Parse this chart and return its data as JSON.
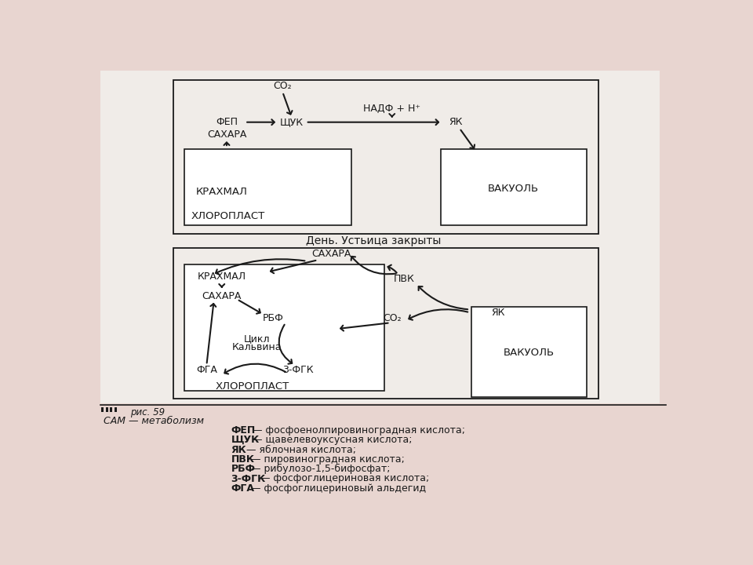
{
  "page_bg": "#e8d5d0",
  "content_bg": "#f0ece8",
  "white": "#ffffff",
  "black": "#1a1a1a",
  "title_day": "День. Устьица закрыты",
  "caption": "рис. 59",
  "subtitle": "САМ — метаболизм",
  "legend_lines": [
    [
      "ФЕП",
      " — фосфоенолпировиноградная кислота;"
    ],
    [
      "ЩУК",
      " — щавелевоуксусная кислота;"
    ],
    [
      "ЯК",
      " — яблочная кислота;"
    ],
    [
      "ПВК",
      " — пировиноградная кислота;"
    ],
    [
      "РБФ",
      " — рибулозо-1,5-бифосфат;"
    ],
    [
      "3-ФГК",
      " — фосфоглицериновая кислота;"
    ],
    [
      "ФГА",
      " — фосфоглицериновый альдегид"
    ]
  ]
}
